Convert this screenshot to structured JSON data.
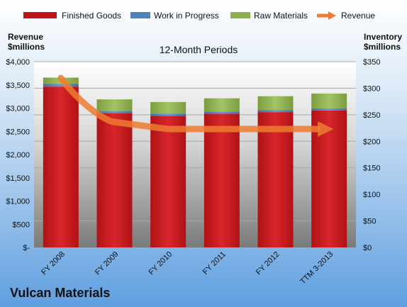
{
  "chart_data": {
    "type": "bar",
    "title": "12-Month Periods",
    "company": "Vulcan Materials",
    "categories": [
      "FY 2008",
      "FY 2009",
      "FY 2010",
      "FY 2011",
      "FY 2012",
      "TTM 3-2013"
    ],
    "series": [
      {
        "name": "Finished Goods",
        "type": "stacked-bar",
        "axis": "right",
        "color": "#c0161a",
        "values": [
          303,
          253,
          248,
          252,
          255,
          258
        ]
      },
      {
        "name": "Work in Progress",
        "type": "stacked-bar",
        "axis": "right",
        "color": "#4f81bd",
        "values": [
          5,
          4,
          4,
          4,
          4,
          4
        ]
      },
      {
        "name": "Raw Materials",
        "type": "stacked-bar",
        "axis": "right",
        "color": "#8fb04f",
        "values": [
          12,
          22,
          22,
          25,
          26,
          28
        ]
      },
      {
        "name": "Revenue",
        "type": "arrow-line",
        "axis": "left",
        "color": "#ed7d31",
        "values": [
          3650,
          2700,
          2550,
          2550,
          2550,
          2550
        ]
      }
    ],
    "left_axis": {
      "label_line1": "Revenue",
      "label_line2": "$millions",
      "ylim": [
        0,
        4000
      ],
      "ticks": [
        {
          "value": 0,
          "label": "$-"
        },
        {
          "value": 500,
          "label": "$500"
        },
        {
          "value": 1000,
          "label": "$1,000"
        },
        {
          "value": 1500,
          "label": "$1,500"
        },
        {
          "value": 2000,
          "label": "$2,000"
        },
        {
          "value": 2500,
          "label": "$2,500"
        },
        {
          "value": 3000,
          "label": "$3,000"
        },
        {
          "value": 3500,
          "label": "$3,500"
        },
        {
          "value": 4000,
          "label": "$4,000"
        }
      ]
    },
    "right_axis": {
      "label_line1": "Inventory",
      "label_line2": "$millions",
      "ylim": [
        0,
        350
      ],
      "ticks": [
        {
          "value": 0,
          "label": "$0"
        },
        {
          "value": 50,
          "label": "$50"
        },
        {
          "value": 100,
          "label": "$100"
        },
        {
          "value": 150,
          "label": "$150"
        },
        {
          "value": 200,
          "label": "$200"
        },
        {
          "value": 250,
          "label": "$250"
        },
        {
          "value": 300,
          "label": "$300"
        },
        {
          "value": 350,
          "label": "$350"
        }
      ]
    },
    "legend_position": "top"
  }
}
